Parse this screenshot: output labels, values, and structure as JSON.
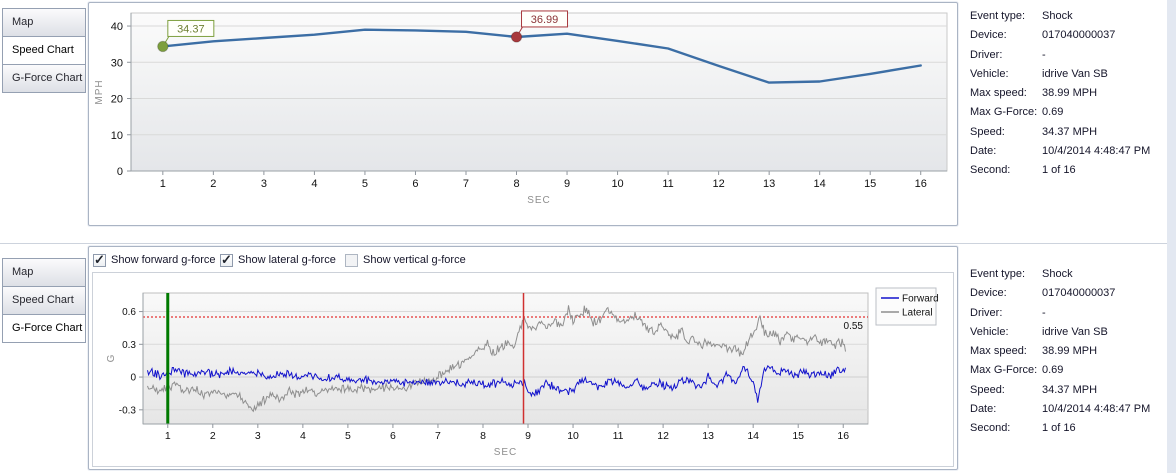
{
  "event_info": [
    {
      "label": "Event type:",
      "value": "Shock"
    },
    {
      "label": "Device:",
      "value": "017040000037"
    },
    {
      "label": "Driver:",
      "value": "-"
    },
    {
      "label": "Vehicle:",
      "value": "idrive Van SB"
    },
    {
      "label": "Max speed:",
      "value": "38.99 MPH"
    },
    {
      "label": "Max G-Force:",
      "value": "0.69"
    },
    {
      "label": "Speed:",
      "value": "34.37 MPH"
    },
    {
      "label": "Date:",
      "value": "10/4/2014 4:48:47 PM"
    },
    {
      "label": "Second:",
      "value": "1 of 16"
    }
  ],
  "top_panel": {
    "tabs": [
      {
        "label": "Map",
        "active": false
      },
      {
        "label": "Speed Chart",
        "active": true
      },
      {
        "label": "G-Force Chart",
        "active": false
      }
    ],
    "chart_data": {
      "type": "line",
      "title": "",
      "xlabel": "SEC",
      "ylabel": "MPH",
      "x": [
        1,
        2,
        3,
        4,
        5,
        6,
        7,
        8,
        9,
        10,
        11,
        12,
        13,
        14,
        15,
        16
      ],
      "values": [
        34.37,
        35.8,
        36.7,
        37.6,
        38.99,
        38.8,
        38.4,
        36.99,
        37.9,
        35.9,
        33.8,
        29.0,
        24.4,
        24.7,
        26.8,
        29.1
      ],
      "xlim": [
        0.37,
        16.52
      ],
      "ylim": [
        0,
        43.6
      ],
      "yticks": [
        0,
        10,
        20,
        30,
        40
      ],
      "line_color": "#3c6ea5",
      "grid": "horizontal",
      "annotations": [
        {
          "x": 1,
          "y": 34.37,
          "label": "34.37",
          "color": "#7d9f3e",
          "text_color": "#6d7f33"
        },
        {
          "x": 8,
          "y": 36.99,
          "label": "36.99",
          "color": "#a8393d",
          "text_color": "#8b3337"
        }
      ]
    }
  },
  "bottom_panel": {
    "tabs": [
      {
        "label": "Map",
        "active": false
      },
      {
        "label": "Speed Chart",
        "active": false
      },
      {
        "label": "G-Force Chart",
        "active": true
      }
    ],
    "checkboxes": [
      {
        "label": "Show forward g-force",
        "checked": true
      },
      {
        "label": "Show lateral g-force",
        "checked": true
      },
      {
        "label": "Show vertical g-force",
        "checked": false
      }
    ],
    "chart_data": {
      "type": "line",
      "title": "",
      "xlabel": "SEC",
      "ylabel": "G",
      "xlim": [
        0.45,
        16.55
      ],
      "ylim": [
        -0.43,
        0.77
      ],
      "xticks": [
        1,
        2,
        3,
        4,
        5,
        6,
        7,
        8,
        9,
        10,
        11,
        12,
        13,
        14,
        15,
        16
      ],
      "yticks": [
        -0.3,
        0,
        0.3,
        0.6
      ],
      "grid": "horizontal",
      "threshold": {
        "value": 0.55,
        "label": "0.55",
        "color": "#e00000"
      },
      "marker_lines": [
        {
          "name": "start-second-line",
          "x": 1,
          "color": "#007a00",
          "width": 3
        },
        {
          "name": "event-second-line",
          "x": 8.9,
          "color": "#d03030",
          "width": 1.5
        }
      ],
      "legend": {
        "position": "right",
        "entries": [
          {
            "name": "Forward",
            "color": "#1212cc"
          },
          {
            "name": "Lateral",
            "color": "#8f8f8f"
          }
        ]
      },
      "sample_step": 0.025,
      "x_start": 0.55,
      "x_end": 16.05,
      "series": [
        {
          "name": "Forward",
          "color": "#1212cc",
          "noise": 0.045,
          "seed": 77701,
          "keypoints": [
            [
              0.55,
              0.05
            ],
            [
              0.8,
              0.02
            ],
            [
              1.0,
              0.03
            ],
            [
              1.2,
              0.06
            ],
            [
              1.5,
              0.02
            ],
            [
              1.8,
              0.05
            ],
            [
              2.1,
              0.02
            ],
            [
              2.4,
              0.05
            ],
            [
              2.7,
              0.02
            ],
            [
              3.0,
              0.04
            ],
            [
              3.3,
              0.01
            ],
            [
              3.6,
              0.03
            ],
            [
              3.9,
              0.0
            ],
            [
              4.2,
              0.02
            ],
            [
              4.5,
              -0.02
            ],
            [
              4.8,
              0.0
            ],
            [
              5.1,
              -0.04
            ],
            [
              5.4,
              -0.02
            ],
            [
              5.7,
              -0.05
            ],
            [
              6.0,
              -0.03
            ],
            [
              6.3,
              -0.06
            ],
            [
              6.6,
              -0.04
            ],
            [
              6.9,
              -0.06
            ],
            [
              7.2,
              -0.04
            ],
            [
              7.5,
              -0.06
            ],
            [
              7.8,
              -0.05
            ],
            [
              8.1,
              -0.07
            ],
            [
              8.4,
              -0.04
            ],
            [
              8.6,
              -0.07
            ],
            [
              8.9,
              -0.05
            ],
            [
              9.05,
              -0.17
            ],
            [
              9.2,
              -0.14
            ],
            [
              9.4,
              -0.04
            ],
            [
              9.6,
              -0.1
            ],
            [
              9.8,
              -0.15
            ],
            [
              10.0,
              -0.12
            ],
            [
              10.2,
              -0.03
            ],
            [
              10.4,
              -0.05
            ],
            [
              10.6,
              -0.1
            ],
            [
              10.8,
              -0.03
            ],
            [
              11.0,
              -0.06
            ],
            [
              11.2,
              -0.1
            ],
            [
              11.4,
              -0.03
            ],
            [
              11.6,
              -0.11
            ],
            [
              11.8,
              -0.05
            ],
            [
              12.0,
              -0.07
            ],
            [
              12.2,
              -0.12
            ],
            [
              12.4,
              -0.04
            ],
            [
              12.6,
              -0.03
            ],
            [
              12.8,
              -0.1
            ],
            [
              13.0,
              0.0
            ],
            [
              13.2,
              -0.09
            ],
            [
              13.4,
              0.03
            ],
            [
              13.6,
              -0.06
            ],
            [
              13.8,
              0.09
            ],
            [
              14.0,
              -0.02
            ],
            [
              14.1,
              -0.22
            ],
            [
              14.25,
              0.08
            ],
            [
              14.4,
              0.1
            ],
            [
              14.55,
              0.02
            ],
            [
              14.7,
              0.07
            ],
            [
              14.9,
              0.0
            ],
            [
              15.1,
              0.06
            ],
            [
              15.3,
              0.01
            ],
            [
              15.5,
              0.05
            ],
            [
              15.7,
              0.02
            ],
            [
              15.9,
              0.07
            ],
            [
              16.05,
              0.05
            ]
          ]
        },
        {
          "name": "Lateral",
          "color": "#8f8f8f",
          "noise": 0.05,
          "seed": 31415,
          "keypoints": [
            [
              0.55,
              -0.08
            ],
            [
              0.8,
              -0.12
            ],
            [
              1.0,
              -0.09
            ],
            [
              1.2,
              -0.06
            ],
            [
              1.4,
              -0.13
            ],
            [
              1.6,
              -0.1
            ],
            [
              1.8,
              -0.15
            ],
            [
              2.0,
              -0.13
            ],
            [
              2.2,
              -0.17
            ],
            [
              2.4,
              -0.15
            ],
            [
              2.6,
              -0.19
            ],
            [
              2.8,
              -0.27
            ],
            [
              2.95,
              -0.29
            ],
            [
              3.1,
              -0.22
            ],
            [
              3.3,
              -0.17
            ],
            [
              3.5,
              -0.21
            ],
            [
              3.7,
              -0.13
            ],
            [
              3.9,
              -0.15
            ],
            [
              4.1,
              -0.12
            ],
            [
              4.3,
              -0.14
            ],
            [
              4.5,
              -0.1
            ],
            [
              4.7,
              -0.13
            ],
            [
              4.9,
              -0.1
            ],
            [
              5.1,
              -0.12
            ],
            [
              5.3,
              -0.09
            ],
            [
              5.5,
              -0.12
            ],
            [
              5.7,
              -0.1
            ],
            [
              5.9,
              -0.08
            ],
            [
              6.1,
              -0.1
            ],
            [
              6.3,
              -0.08
            ],
            [
              6.5,
              -0.06
            ],
            [
              6.7,
              -0.04
            ],
            [
              6.9,
              -0.01
            ],
            [
              7.1,
              0.03
            ],
            [
              7.3,
              0.08
            ],
            [
              7.5,
              0.12
            ],
            [
              7.7,
              0.17
            ],
            [
              7.9,
              0.24
            ],
            [
              8.1,
              0.3
            ],
            [
              8.25,
              0.22
            ],
            [
              8.4,
              0.28
            ],
            [
              8.55,
              0.31
            ],
            [
              8.7,
              0.26
            ],
            [
              8.82,
              0.45
            ],
            [
              8.9,
              0.54
            ],
            [
              9.0,
              0.48
            ],
            [
              9.15,
              0.43
            ],
            [
              9.3,
              0.5
            ],
            [
              9.45,
              0.46
            ],
            [
              9.6,
              0.5
            ],
            [
              9.75,
              0.47
            ],
            [
              9.9,
              0.62
            ],
            [
              10.0,
              0.5
            ],
            [
              10.15,
              0.58
            ],
            [
              10.3,
              0.62
            ],
            [
              10.45,
              0.5
            ],
            [
              10.6,
              0.54
            ],
            [
              10.75,
              0.62
            ],
            [
              10.9,
              0.58
            ],
            [
              11.05,
              0.5
            ],
            [
              11.2,
              0.52
            ],
            [
              11.35,
              0.56
            ],
            [
              11.5,
              0.52
            ],
            [
              11.65,
              0.44
            ],
            [
              11.8,
              0.42
            ],
            [
              11.95,
              0.47
            ],
            [
              12.1,
              0.42
            ],
            [
              12.25,
              0.36
            ],
            [
              12.4,
              0.42
            ],
            [
              12.55,
              0.33
            ],
            [
              12.7,
              0.36
            ],
            [
              12.85,
              0.3
            ],
            [
              13.0,
              0.34
            ],
            [
              13.15,
              0.27
            ],
            [
              13.3,
              0.31
            ],
            [
              13.45,
              0.25
            ],
            [
              13.6,
              0.28
            ],
            [
              13.75,
              0.2
            ],
            [
              13.9,
              0.33
            ],
            [
              14.05,
              0.42
            ],
            [
              14.15,
              0.55
            ],
            [
              14.3,
              0.36
            ],
            [
              14.45,
              0.42
            ],
            [
              14.6,
              0.34
            ],
            [
              14.75,
              0.4
            ],
            [
              14.9,
              0.33
            ],
            [
              15.05,
              0.38
            ],
            [
              15.2,
              0.32
            ],
            [
              15.35,
              0.37
            ],
            [
              15.5,
              0.31
            ],
            [
              15.65,
              0.35
            ],
            [
              15.8,
              0.3
            ],
            [
              15.95,
              0.32
            ],
            [
              16.05,
              0.27
            ]
          ]
        }
      ]
    }
  }
}
